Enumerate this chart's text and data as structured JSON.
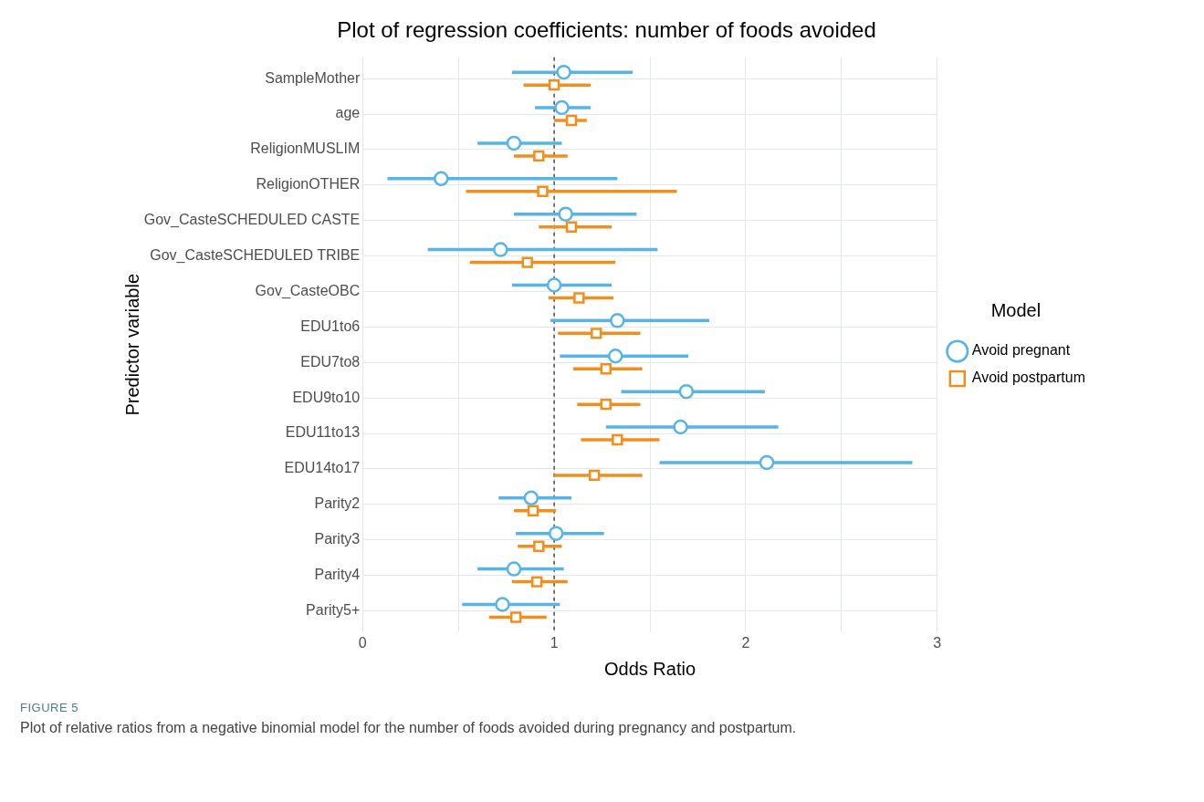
{
  "chart_data": {
    "type": "scatter",
    "orientation": "horizontal",
    "title": "Plot of regression coefficients: number of foods avoided",
    "xlabel": "Odds Ratio",
    "ylabel": "Predictor variable",
    "legend_title": "Model",
    "legend": "right",
    "grid": true,
    "categories": [
      "SampleMother",
      "age",
      "ReligionMUSLIM",
      "ReligionOTHER",
      "Gov_CasteSCHEDULED CASTE",
      "Gov_CasteSCHEDULED TRIBE",
      "Gov_CasteOBC",
      "EDU1to6",
      "EDU7to8",
      "EDU9to10",
      "EDU11to13",
      "EDU14to17",
      "Parity2",
      "Parity3",
      "Parity4",
      "Parity5+"
    ],
    "xlim": [
      0,
      3
    ],
    "xticks": [
      0,
      {
        "value": 0.5,
        "label": null
      },
      1,
      {
        "value": 1.5,
        "label": null
      },
      2,
      {
        "value": 2.5,
        "label": null
      },
      3
    ],
    "series": [
      {
        "name": "Avoid pregnant",
        "color": "#56b4e9",
        "marker": "circle",
        "values": [
          1.05,
          1.04,
          0.79,
          0.41,
          1.06,
          0.72,
          1.0,
          1.33,
          1.32,
          1.69,
          1.66,
          2.11,
          0.88,
          1.01,
          0.79,
          0.73
        ],
        "errors": [
          [
            0.78,
            1.41
          ],
          [
            0.9,
            1.19
          ],
          [
            0.6,
            1.04
          ],
          [
            0.13,
            1.33
          ],
          [
            0.79,
            1.43
          ],
          [
            0.34,
            1.54
          ],
          [
            0.78,
            1.3
          ],
          [
            0.98,
            1.81
          ],
          [
            1.03,
            1.7
          ],
          [
            1.35,
            2.1
          ],
          [
            1.27,
            2.17
          ],
          [
            1.55,
            2.87
          ],
          [
            0.71,
            1.09
          ],
          [
            0.8,
            1.26
          ],
          [
            0.6,
            1.05
          ],
          [
            0.52,
            1.03
          ]
        ]
      },
      {
        "name": "Avoid postpartum",
        "color": "#f28e1c",
        "marker": "square",
        "values": [
          1.0,
          1.09,
          0.92,
          0.94,
          1.09,
          0.86,
          1.13,
          1.22,
          1.27,
          1.27,
          1.33,
          1.21,
          0.89,
          0.92,
          0.91,
          0.8
        ],
        "errors": [
          [
            0.84,
            1.19
          ],
          [
            1.0,
            1.17
          ],
          [
            0.79,
            1.07
          ],
          [
            0.54,
            1.64
          ],
          [
            0.92,
            1.3
          ],
          [
            0.56,
            1.32
          ],
          [
            0.97,
            1.31
          ],
          [
            1.02,
            1.45
          ],
          [
            1.1,
            1.46
          ],
          [
            1.12,
            1.45
          ],
          [
            1.14,
            1.55
          ],
          [
            1.0,
            1.46
          ],
          [
            0.79,
            1.01
          ],
          [
            0.81,
            1.04
          ],
          [
            0.78,
            1.07
          ],
          [
            0.66,
            0.96
          ]
        ]
      }
    ],
    "ref_lines": [
      {
        "axis": "x",
        "value": 1,
        "line_style": "dashed",
        "color": "#333333"
      }
    ],
    "annotations": [
      "FIGURE 5",
      "Plot of relative ratios from a negative binomial model for the number of foods avoided during pregnancy and postpartum."
    ]
  }
}
